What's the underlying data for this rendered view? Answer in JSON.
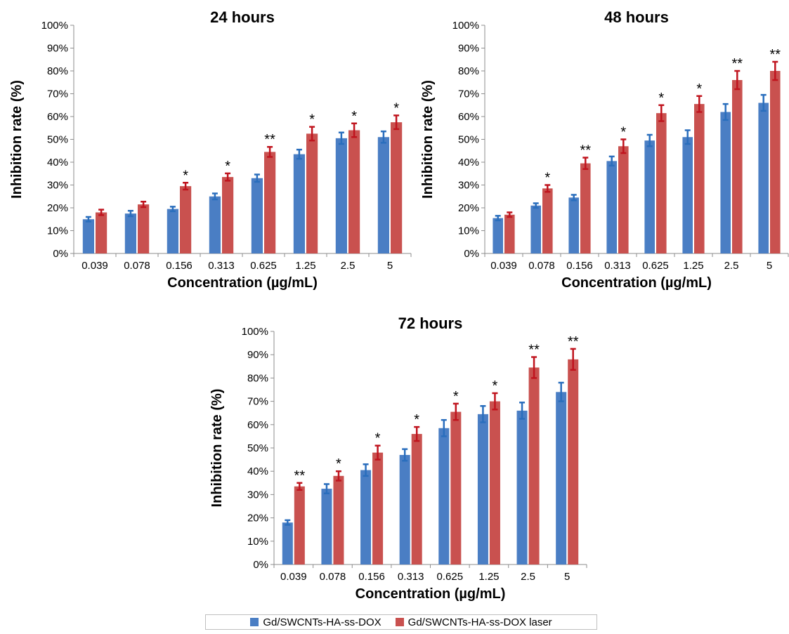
{
  "colors": {
    "series1": "#4a7ec4",
    "series1_err": "#2a6ebd",
    "series2": "#c9514f",
    "series2_err": "#c0141e",
    "axis": "#8c8c8c"
  },
  "legend": {
    "items": [
      {
        "label": "Gd/SWCNTs-HA-ss-DOX",
        "color": "#4a7ec4"
      },
      {
        "label": "Gd/SWCNTs-HA-ss-DOX laser",
        "color": "#c9514f"
      }
    ]
  },
  "chart_data": [
    {
      "type": "bar",
      "title": "24 hours",
      "xlabel": "Concentration (µg/mL)",
      "ylabel": "Inhibition rate (%)",
      "ylim": [
        0,
        100
      ],
      "yticks": [
        "0%",
        "10%",
        "20%",
        "30%",
        "40%",
        "50%",
        "60%",
        "70%",
        "80%",
        "90%",
        "100%"
      ],
      "categories": [
        "0.039",
        "0.078",
        "0.156",
        "0.313",
        "0.625",
        "1.25",
        "2.5",
        "5"
      ],
      "series": [
        {
          "name": "Gd/SWCNTs-HA-ss-DOX",
          "values": [
            15,
            17.5,
            19.5,
            25,
            33,
            43.5,
            50.5,
            51
          ],
          "errors": [
            1,
            1.2,
            1,
            1.3,
            1.6,
            2,
            2.5,
            2.5
          ]
        },
        {
          "name": "Gd/SWCNTs-HA-ss-DOX laser",
          "values": [
            18,
            21.5,
            29.5,
            33.5,
            44.5,
            52.5,
            54,
            57.5
          ],
          "errors": [
            1.2,
            1.2,
            1.5,
            1.6,
            2.2,
            3,
            3,
            3
          ]
        }
      ],
      "annotations": [
        "",
        "",
        "*",
        "*",
        "**",
        "*",
        "*",
        "*"
      ]
    },
    {
      "type": "bar",
      "title": "48 hours",
      "xlabel": "Concentration (µg/mL)",
      "ylabel": "Inhibition rate (%)",
      "ylim": [
        0,
        100
      ],
      "yticks": [
        "0%",
        "10%",
        "20%",
        "30%",
        "40%",
        "50%",
        "60%",
        "70%",
        "80%",
        "90%",
        "100%"
      ],
      "categories": [
        "0.039",
        "0.078",
        "0.156",
        "0.313",
        "0.625",
        "1.25",
        "2.5",
        "5"
      ],
      "series": [
        {
          "name": "Gd/SWCNTs-HA-ss-DOX",
          "values": [
            15.5,
            21,
            24.5,
            40.5,
            49.5,
            51,
            62,
            66
          ],
          "errors": [
            1,
            1,
            1.2,
            2,
            2.5,
            3,
            3.5,
            3.5
          ]
        },
        {
          "name": "Gd/SWCNTs-HA-ss-DOX laser",
          "values": [
            17,
            28.5,
            39.5,
            47,
            61.5,
            65.5,
            76,
            80
          ],
          "errors": [
            1,
            1.5,
            2.5,
            3,
            3.5,
            3.5,
            4,
            4
          ]
        }
      ],
      "annotations": [
        "",
        "*",
        "**",
        "*",
        "*",
        "*",
        "**",
        "**"
      ]
    },
    {
      "type": "bar",
      "title": "72 hours",
      "xlabel": "Concentration (µg/mL)",
      "ylabel": "Inhibition rate (%)",
      "ylim": [
        0,
        100
      ],
      "yticks": [
        "0%",
        "10%",
        "20%",
        "30%",
        "40%",
        "50%",
        "60%",
        "70%",
        "80%",
        "90%",
        "100%"
      ],
      "categories": [
        "0.039",
        "0.078",
        "0.156",
        "0.313",
        "0.625",
        "1.25",
        "2.5",
        "5"
      ],
      "series": [
        {
          "name": "Gd/SWCNTs-HA-ss-DOX",
          "values": [
            18,
            32.5,
            40.5,
            47,
            58.5,
            64.5,
            66,
            74
          ],
          "errors": [
            1,
            2,
            2.5,
            2.5,
            3.5,
            3.5,
            3.5,
            4
          ]
        },
        {
          "name": "Gd/SWCNTs-HA-ss-DOX laser",
          "values": [
            33.5,
            38,
            48,
            56,
            65.5,
            70,
            84.5,
            88
          ],
          "errors": [
            1.5,
            2,
            3,
            3,
            3.5,
            3.5,
            4.5,
            4.5
          ]
        }
      ],
      "annotations": [
        "**",
        "*",
        "*",
        "*",
        "*",
        "*",
        "**",
        "**"
      ]
    }
  ]
}
